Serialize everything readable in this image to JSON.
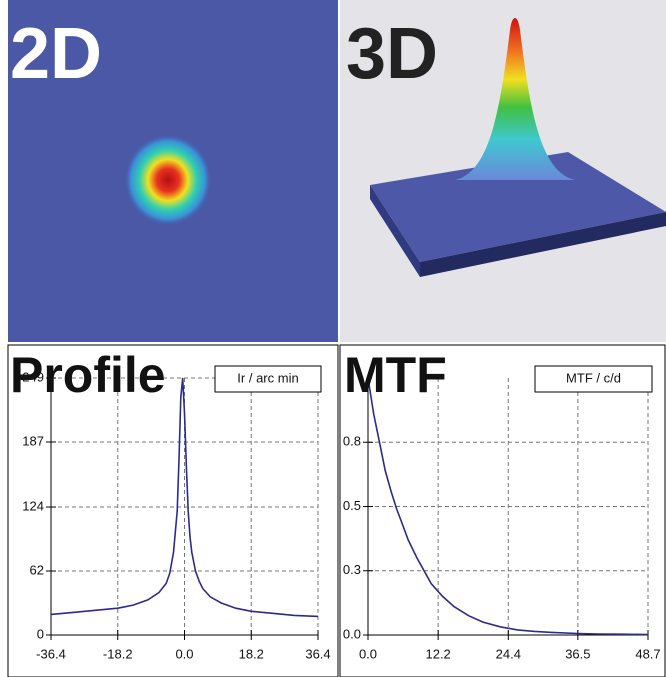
{
  "panels": {
    "heatmap_label": "2D",
    "surface_label": "3D"
  },
  "chart_data": [
    {
      "type": "line",
      "title": "Profile",
      "legend": "Ir / arc min",
      "x": [
        -36.4,
        -30,
        -24,
        -18.2,
        -14,
        -10,
        -7,
        -5,
        -4,
        -3,
        -2,
        -1.5,
        -1,
        -0.5,
        0,
        0.5,
        1,
        1.5,
        2,
        3,
        4,
        5,
        7,
        10,
        14,
        18.2,
        24,
        30,
        36.4
      ],
      "series": [
        {
          "name": "Ir / arc min",
          "color": "#2b2b8c",
          "values": [
            20,
            22,
            24,
            26,
            29,
            34,
            41,
            50,
            60,
            80,
            120,
            170,
            230,
            249,
            215,
            165,
            120,
            95,
            80,
            62,
            52,
            45,
            37,
            31,
            26,
            23,
            21,
            19,
            18
          ]
        }
      ],
      "xlim": [
        -36.4,
        36.4
      ],
      "ylim": [
        0,
        249
      ],
      "xticks": [
        -36.4,
        -18.2,
        {
          "value": 0,
          "label": "0.0"
        },
        18.2,
        36.4
      ],
      "yticks": [
        0,
        62,
        124,
        187,
        249
      ],
      "grid": true
    },
    {
      "type": "line",
      "title": "MTF",
      "legend": "MTF / c/d",
      "x": [
        0,
        1,
        2,
        3,
        4,
        5,
        6,
        7,
        8.5,
        10,
        11,
        13,
        15,
        17.5,
        20,
        23,
        26,
        29,
        32,
        36.5,
        40,
        44,
        48.7
      ],
      "series": [
        {
          "name": "MTF / c/d",
          "color": "#2b2b8c",
          "values": [
            1.0,
            0.86,
            0.75,
            0.64,
            0.56,
            0.49,
            0.43,
            0.37,
            0.3,
            0.24,
            0.2,
            0.15,
            0.11,
            0.075,
            0.05,
            0.032,
            0.02,
            0.014,
            0.01,
            0.006,
            0.004,
            0.003,
            0.002
          ]
        }
      ],
      "xlim": [
        0,
        48.7
      ],
      "ylim": [
        0,
        1
      ],
      "xticks": [
        {
          "value": 0,
          "label": "0.0"
        },
        12.2,
        24.4,
        36.5,
        48.7
      ],
      "yticks": [
        {
          "value": 0,
          "label": "0.0"
        },
        {
          "value": 0.25,
          "label": "0.3"
        },
        0.5,
        {
          "value": 0.75,
          "label": "0.8"
        }
      ],
      "grid": true
    }
  ]
}
